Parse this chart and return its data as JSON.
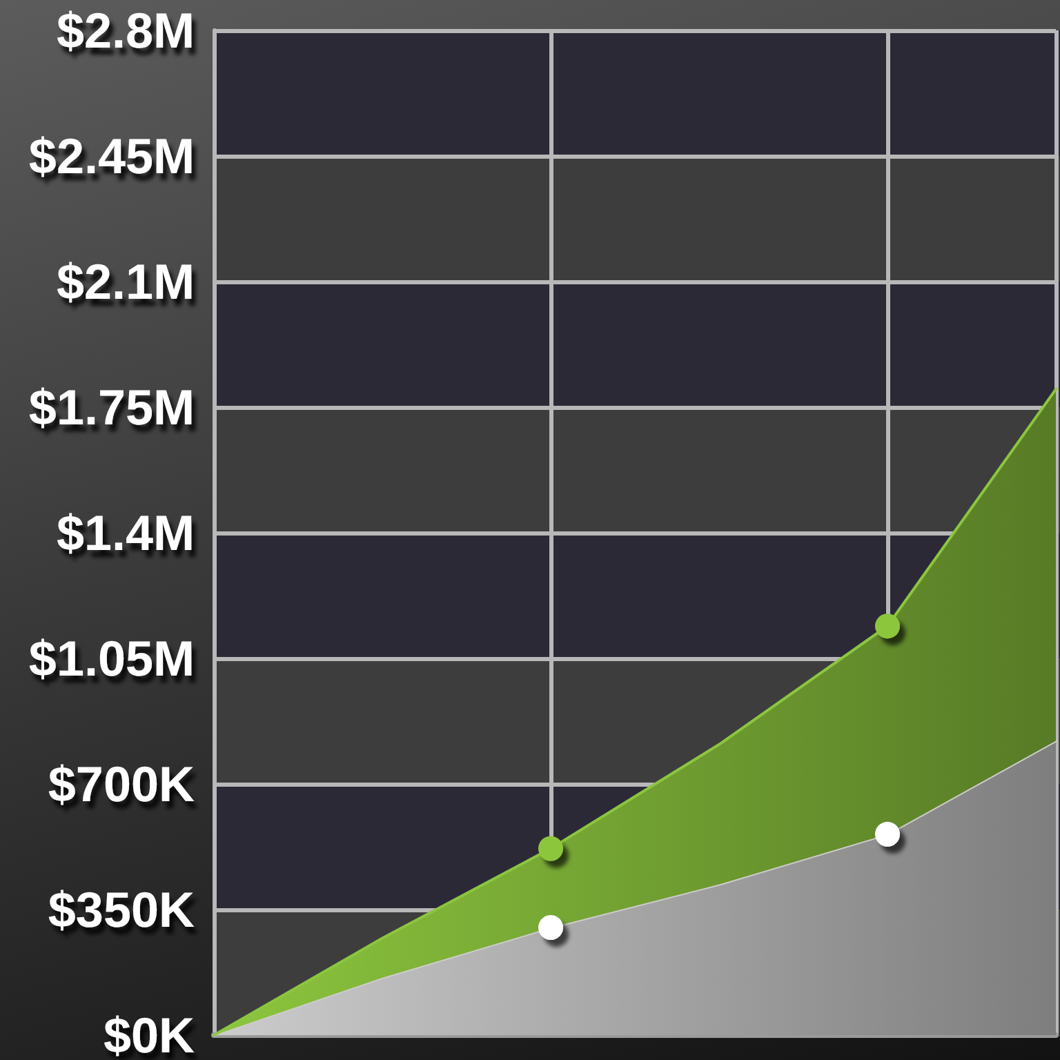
{
  "chart_data": {
    "type": "area",
    "stacked": true,
    "categories": [
      null,
      null,
      null,
      null,
      null,
      null
    ],
    "series": [
      {
        "color": "#cccccc",
        "values": [
          0,
          160000,
          300000,
          420000,
          560000,
          820000
        ]
      },
      {
        "color": "#8cc63e",
        "values": [
          0,
          110000,
          220000,
          390000,
          580000,
          980000
        ]
      },
      {
        "type": "scatter",
        "marker": "circle",
        "color": "#8cc63e",
        "values": [
          null,
          null,
          520000,
          null,
          1140000,
          null
        ]
      },
      {
        "type": "scatter",
        "marker": "circle",
        "color": "#ffffff",
        "values": [
          null,
          null,
          300000,
          null,
          560000,
          null
        ]
      }
    ],
    "ylim": [
      0,
      2800000
    ],
    "yticks": [
      {
        "value": 0,
        "label": "$0K"
      },
      {
        "value": 350000,
        "label": "$350K"
      },
      {
        "value": 700000,
        "label": "$700K"
      },
      {
        "value": 1050000,
        "label": "$1.05M"
      },
      {
        "value": 1400000,
        "label": "$1.4M"
      },
      {
        "value": 1750000,
        "label": "$1.75M"
      },
      {
        "value": 2100000,
        "label": "$2.1M"
      },
      {
        "value": 2450000,
        "label": "$2.45M"
      },
      {
        "value": 2800000,
        "label": "$2.8M"
      }
    ],
    "grid": true
  }
}
